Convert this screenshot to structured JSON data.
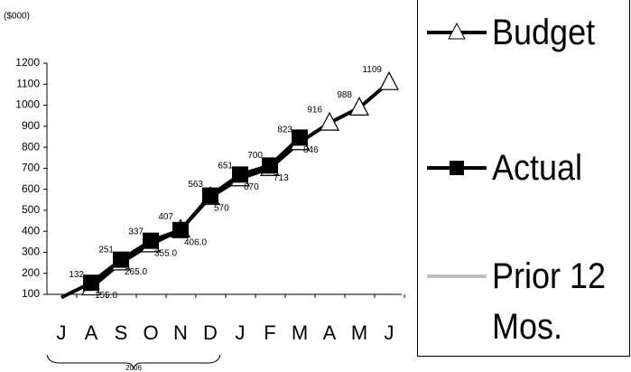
{
  "chart_data": {
    "type": "line",
    "y_axis_label": "($000)",
    "period_label": "2006",
    "categories": [
      "J",
      "A",
      "S",
      "O",
      "N",
      "D",
      "J",
      "F",
      "M",
      "A",
      "M",
      "J"
    ],
    "ylim": [
      100,
      1200
    ],
    "yticks": [
      100,
      200,
      300,
      400,
      500,
      600,
      700,
      800,
      900,
      1000,
      1100,
      1200
    ],
    "series": [
      {
        "name": "Budget",
        "color": "#000000",
        "marker": "triangle",
        "values": [
          null,
          132,
          251,
          337,
          407,
          563,
          651,
          700,
          823,
          916,
          988,
          1109
        ],
        "value_labels": [
          null,
          "132",
          "251",
          "337",
          "407",
          "563",
          "651",
          "700",
          "823",
          "916",
          "988",
          "1109"
        ]
      },
      {
        "name": "Actual",
        "color": "#000000",
        "marker": "square",
        "values": [
          85,
          155,
          265,
          355,
          406,
          570,
          670,
          713,
          846,
          null,
          null,
          null
        ],
        "value_labels": [
          null,
          "155.0",
          "265.0",
          "355.0",
          "406.0",
          "570",
          "670",
          "713",
          "846",
          null,
          null,
          null
        ]
      },
      {
        "name": "Prior 12 Mos.",
        "color": "#c0c0c0",
        "marker": "none",
        "values": [
          null,
          null,
          null,
          null,
          null,
          null,
          null,
          null,
          null,
          null,
          null,
          null
        ]
      }
    ]
  }
}
